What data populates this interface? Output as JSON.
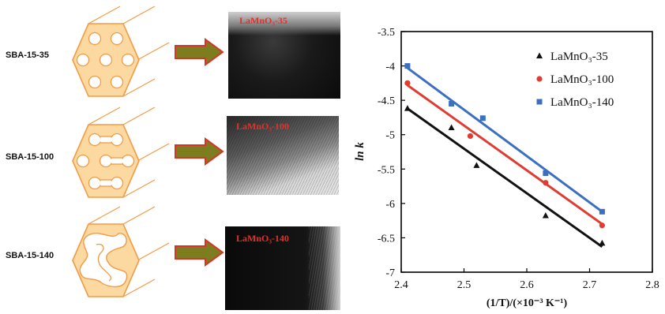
{
  "schematic": {
    "rows": [
      {
        "support": "SBA-15-35",
        "micrograph_label": "LaMnO₃-35"
      },
      {
        "support": "SBA-15-100",
        "micrograph_label": "LaMnO₃-100"
      },
      {
        "support": "SBA-15-140",
        "micrograph_label": "LaMnO₃-140"
      }
    ]
  },
  "colors": {
    "hexagon_fill": "#fbd9a0",
    "hexagon_stroke": "#f39a45",
    "arrow_fill": "#7d7c1f",
    "arrow_stroke": "#d73328",
    "micrograph_label": "#e0322a"
  },
  "chart_data": {
    "type": "scatter",
    "xlabel": "(1/T)/(×10⁻³ K⁻¹)",
    "ylabel": "ln k",
    "xlim": [
      2.4,
      2.8
    ],
    "ylim": [
      -7,
      -3.5
    ],
    "xticks": [
      "2.4",
      "2.5",
      "2.6",
      "2.7",
      "2.8"
    ],
    "yticks": [
      "-3.5",
      "-4",
      "-4.5",
      "-5",
      "-5.5",
      "-6",
      "-6.5",
      "-7"
    ],
    "legend_position": "top-right",
    "grid": false,
    "series": [
      {
        "name": "LaMnO₃-35",
        "marker": "triangle",
        "color": "#111111",
        "x": [
          2.41,
          2.48,
          2.52,
          2.63,
          2.72
        ],
        "y": [
          -4.62,
          -4.9,
          -5.45,
          -6.18,
          -6.58
        ],
        "fit": {
          "x": [
            2.41,
            2.72
          ],
          "y": [
            -4.62,
            -6.63
          ]
        }
      },
      {
        "name": "LaMnO₃-100",
        "marker": "circle",
        "color": "#e03c31",
        "x": [
          2.41,
          2.51,
          2.63,
          2.72
        ],
        "y": [
          -4.25,
          -5.02,
          -5.7,
          -6.32
        ],
        "fit": {
          "x": [
            2.41,
            2.72
          ],
          "y": [
            -4.28,
            -6.3
          ]
        }
      },
      {
        "name": "LaMnO₃-140",
        "marker": "square",
        "color": "#3d6fc1",
        "x": [
          2.41,
          2.48,
          2.53,
          2.63,
          2.72
        ],
        "y": [
          -4.0,
          -4.55,
          -4.76,
          -5.56,
          -6.12
        ],
        "fit": {
          "x": [
            2.41,
            2.72
          ],
          "y": [
            -4.03,
            -6.12
          ]
        }
      }
    ]
  }
}
